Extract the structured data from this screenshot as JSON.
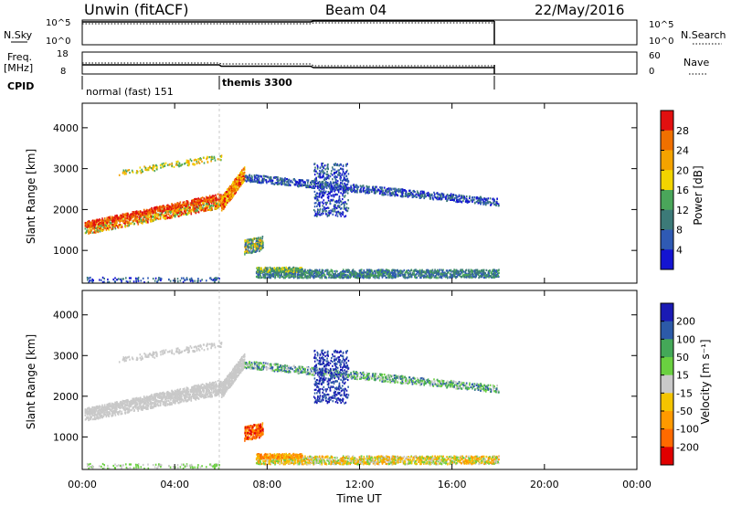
{
  "header": {
    "radar": "Unwin (fitACF)",
    "beam": "Beam 04",
    "date": "22/May/2016"
  },
  "top_panels": {
    "nsky_label": "N.Sky",
    "nsky_ticks": [
      "10^5",
      "10^0"
    ],
    "nsearch_label": "N.Search",
    "nsearch_ticks": [
      "10^5",
      "10^0"
    ],
    "freq_label": "Freq.",
    "freq_unit": "[MHz]",
    "freq_ticks": [
      "18",
      "8"
    ],
    "nave_label": "Nave",
    "nave_ticks": [
      "60",
      "0"
    ],
    "cpid_label": "CPID",
    "cpid_modes": [
      {
        "name": "normal (fast) 151",
        "start_h": 0,
        "end_h": 6
      },
      {
        "name": "themis 3300",
        "start_h": 6,
        "end_h": 18
      }
    ]
  },
  "colors": {
    "power": [
      "#1414d2",
      "#2f5ab4",
      "#3c7a78",
      "#4aa65a",
      "#f2d400",
      "#f4a300",
      "#f07000",
      "#e21010"
    ],
    "velocity": [
      "#e00000",
      "#ff6a00",
      "#ff9a00",
      "#f4c400",
      "#c9c9c9",
      "#6ad040",
      "#44a858",
      "#2c5aa8",
      "#1a1ab4"
    ]
  },
  "chart_data": [
    {
      "type": "heatmap",
      "name": "power",
      "ylabel": "Slant Range [km]",
      "yticks": [
        1000,
        2000,
        3000,
        4000
      ],
      "ylim": [
        200,
        4600
      ],
      "xlim_h": [
        0,
        24
      ],
      "colorbar_label": "Power [dB]",
      "colorbar_ticks": [
        "28",
        "24",
        "20",
        "16",
        "12",
        "8",
        "4"
      ],
      "colorbar_range": [
        0,
        32
      ]
    },
    {
      "type": "heatmap",
      "name": "velocity",
      "ylabel": "Slant Range [km]",
      "yticks": [
        1000,
        2000,
        3000,
        4000
      ],
      "ylim": [
        200,
        4600
      ],
      "xlim_h": [
        0,
        24
      ],
      "xlabel": "Time UT",
      "xticks": [
        "00:00",
        "04:00",
        "08:00",
        "12:00",
        "16:00",
        "20:00",
        "00:00"
      ],
      "colorbar_label": "Velocity [m s⁻¹]",
      "colorbar_ticks": [
        "200",
        "100",
        "50",
        "15",
        "-15",
        "-50",
        "-100",
        "-200"
      ]
    }
  ]
}
